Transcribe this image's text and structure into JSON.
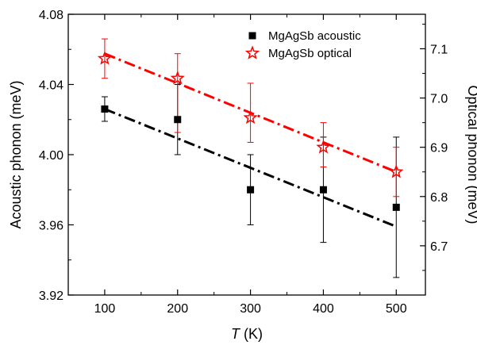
{
  "chart_data": {
    "type": "scatter",
    "x_label_italic": "T",
    "x_label_unit": " (K)",
    "y_left_label": "Acoustic phonon (meV)",
    "y_right_label": "Optical phonon (meV)",
    "xlim": [
      50,
      540
    ],
    "ylim_left": [
      3.92,
      4.08
    ],
    "ylim_right": [
      6.6,
      7.17
    ],
    "x_ticks": [
      "100",
      "200",
      "300",
      "400",
      "500"
    ],
    "y_left_ticks": [
      "3.92",
      "3.96",
      "4.00",
      "4.04",
      "4.08"
    ],
    "y_right_ticks": [
      "6.7",
      "6.8",
      "6.9",
      "7.0",
      "7.1"
    ],
    "series": [
      {
        "name": "MgAgSb acoustic",
        "axis": "left",
        "marker": "square",
        "color": "#000000",
        "x": [
          100,
          200,
          300,
          400,
          500
        ],
        "y": [
          4.026,
          4.02,
          3.98,
          3.98,
          3.97
        ],
        "err_low": [
          4.019,
          4.0,
          3.96,
          3.95,
          3.93
        ],
        "err_high": [
          4.033,
          4.04,
          4.0,
          4.01,
          4.01
        ],
        "fit": [
          [
            100,
            4.026
          ],
          [
            500,
            3.959
          ]
        ]
      },
      {
        "name": "MgAgSb optical",
        "axis": "right",
        "marker": "star",
        "color": "#ff0000",
        "x": [
          100,
          200,
          300,
          400,
          500
        ],
        "y": [
          7.08,
          7.04,
          6.96,
          6.9,
          6.85
        ],
        "err_low": [
          7.04,
          6.93,
          6.91,
          6.86,
          6.8
        ],
        "err_high": [
          7.12,
          7.09,
          7.03,
          6.95,
          6.9
        ],
        "fit": [
          [
            100,
            7.09
          ],
          [
            500,
            6.85
          ]
        ]
      }
    ],
    "legend_position": "top-right"
  }
}
